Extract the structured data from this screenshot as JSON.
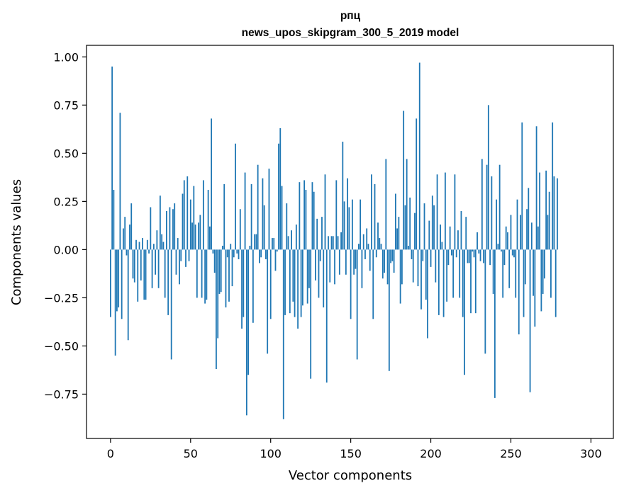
{
  "chart_data": {
    "type": "bar",
    "title_line1": "рпц",
    "title_line2": "news_upos_skipgram_300_5_2019 model",
    "xlabel": "Vector components",
    "ylabel": "Components values",
    "xlim": [
      -15,
      314
    ],
    "ylim": [
      -0.98,
      1.06
    ],
    "xticks": [
      0,
      50,
      100,
      150,
      200,
      250,
      300
    ],
    "xtick_labels": [
      "0",
      "50",
      "100",
      "150",
      "200",
      "250",
      "300"
    ],
    "yticks": [
      -0.75,
      -0.5,
      -0.25,
      0.0,
      0.25,
      0.5,
      0.75,
      1.0
    ],
    "ytick_labels": [
      "−0.75",
      "−0.50",
      "−0.25",
      "0.00",
      "0.25",
      "0.50",
      "0.75",
      "1.00"
    ],
    "color": "#1f77b4",
    "grid": false,
    "legend": false,
    "values": [
      -0.35,
      0.95,
      0.31,
      -0.55,
      -0.32,
      -0.3,
      0.71,
      -0.36,
      0.11,
      0.17,
      -0.03,
      -0.47,
      0.13,
      0.24,
      -0.15,
      -0.17,
      0.05,
      -0.27,
      0.04,
      -0.16,
      0.06,
      -0.26,
      -0.26,
      0.05,
      -0.02,
      0.22,
      -0.2,
      0.03,
      -0.13,
      0.1,
      -0.2,
      0.28,
      0.08,
      0.04,
      -0.25,
      0.2,
      -0.34,
      0.22,
      -0.57,
      0.21,
      0.24,
      -0.13,
      0.06,
      -0.18,
      -0.06,
      0.29,
      0.36,
      -0.09,
      0.38,
      -0.06,
      0.26,
      0.14,
      0.33,
      0.13,
      -0.25,
      0.14,
      0.18,
      -0.25,
      0.36,
      -0.28,
      -0.26,
      0.31,
      0.12,
      0.68,
      -0.02,
      -0.12,
      -0.62,
      -0.46,
      -0.23,
      -0.22,
      0.02,
      0.34,
      -0.3,
      -0.04,
      -0.27,
      0.03,
      -0.19,
      -0.04,
      0.55,
      -0.02,
      -0.05,
      0.21,
      -0.41,
      -0.35,
      0.4,
      -0.86,
      -0.65,
      0.02,
      0.34,
      -0.38,
      0.08,
      0.08,
      0.44,
      -0.07,
      -0.04,
      0.37,
      0.23,
      -0.05,
      -0.54,
      0.42,
      -0.36,
      0.06,
      0.06,
      -0.11,
      -0.01,
      0.55,
      0.63,
      0.33,
      -0.88,
      -0.34,
      0.24,
      0.07,
      -0.33,
      0.1,
      -0.27,
      -0.35,
      0.13,
      -0.41,
      0.35,
      -0.35,
      -0.29,
      0.36,
      0.31,
      -0.28,
      -0.2,
      -0.67,
      0.35,
      0.3,
      -0.16,
      0.16,
      -0.25,
      -0.06,
      0.17,
      -0.3,
      0.39,
      -0.69,
      0.07,
      -0.17,
      0.07,
      0.07,
      -0.18,
      0.36,
      0.07,
      -0.13,
      0.09,
      0.56,
      0.25,
      -0.13,
      0.37,
      0.22,
      -0.36,
      0.26,
      -0.13,
      -0.1,
      -0.57,
      0.03,
      0.26,
      -0.2,
      0.08,
      -0.05,
      0.11,
      0.03,
      -0.11,
      0.39,
      -0.36,
      0.34,
      -0.04,
      0.14,
      0.06,
      0.03,
      -0.15,
      -0.12,
      0.47,
      -0.18,
      -0.63,
      -0.07,
      -0.06,
      -0.12,
      0.29,
      0.11,
      0.17,
      -0.28,
      -0.18,
      0.72,
      0.23,
      0.47,
      0.02,
      0.27,
      -0.05,
      -0.17,
      0.19,
      0.68,
      -0.19,
      0.97,
      -0.31,
      -0.06,
      0.24,
      -0.26,
      -0.46,
      0.15,
      -0.09,
      0.28,
      0.23,
      -0.17,
      0.39,
      -0.34,
      0.13,
      0.04,
      -0.35,
      0.4,
      -0.27,
      -0.08,
      0.12,
      -0.03,
      -0.25,
      0.39,
      -0.04,
      0.1,
      -0.25,
      0.2,
      -0.35,
      -0.65,
      0.17,
      -0.07,
      -0.07,
      -0.33,
      -0.01,
      -0.04,
      -0.33,
      0.09,
      -0.02,
      -0.06,
      0.47,
      -0.07,
      -0.54,
      0.44,
      0.75,
      -0.08,
      0.38,
      -0.23,
      -0.77,
      0.26,
      0.03,
      0.44,
      -0.01,
      -0.25,
      -0.08,
      0.12,
      0.09,
      -0.2,
      0.18,
      -0.03,
      -0.04,
      -0.25,
      0.26,
      -0.44,
      0.18,
      0.66,
      -0.35,
      -0.18,
      0.21,
      0.32,
      -0.74,
      0.14,
      -0.24,
      -0.4,
      0.64,
      0.12,
      0.4,
      -0.32,
      -0.23,
      -0.15,
      0.41,
      0.18,
      0.3,
      -0.25,
      0.66,
      0.38,
      -0.35,
      0.37
    ]
  }
}
